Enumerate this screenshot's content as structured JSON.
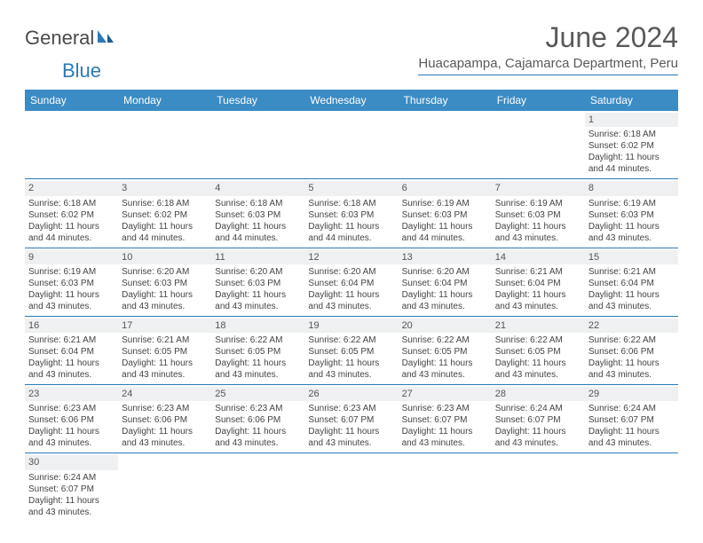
{
  "brand": {
    "part1": "General",
    "part2": "Blue"
  },
  "title": "June 2024",
  "location": "Huacapampa, Cajamarca Department, Peru",
  "colors": {
    "header_bg": "#3b8bc4",
    "header_text": "#ffffff",
    "border": "#2a7ab8",
    "daynum_bg": "#eef0f1",
    "text": "#444444",
    "title_text": "#5a5a5a"
  },
  "day_headers": [
    "Sunday",
    "Monday",
    "Tuesday",
    "Wednesday",
    "Thursday",
    "Friday",
    "Saturday"
  ],
  "labels": {
    "sunrise": "Sunrise:",
    "sunset": "Sunset:",
    "daylight": "Daylight:",
    "and": "and",
    "minutes": "minutes."
  },
  "weeks": [
    [
      null,
      null,
      null,
      null,
      null,
      null,
      {
        "n": "1",
        "sr": "6:18 AM",
        "ss": "6:02 PM",
        "dh": "11 hours",
        "dm": "44"
      }
    ],
    [
      {
        "n": "2",
        "sr": "6:18 AM",
        "ss": "6:02 PM",
        "dh": "11 hours",
        "dm": "44"
      },
      {
        "n": "3",
        "sr": "6:18 AM",
        "ss": "6:02 PM",
        "dh": "11 hours",
        "dm": "44"
      },
      {
        "n": "4",
        "sr": "6:18 AM",
        "ss": "6:03 PM",
        "dh": "11 hours",
        "dm": "44"
      },
      {
        "n": "5",
        "sr": "6:18 AM",
        "ss": "6:03 PM",
        "dh": "11 hours",
        "dm": "44"
      },
      {
        "n": "6",
        "sr": "6:19 AM",
        "ss": "6:03 PM",
        "dh": "11 hours",
        "dm": "44"
      },
      {
        "n": "7",
        "sr": "6:19 AM",
        "ss": "6:03 PM",
        "dh": "11 hours",
        "dm": "43"
      },
      {
        "n": "8",
        "sr": "6:19 AM",
        "ss": "6:03 PM",
        "dh": "11 hours",
        "dm": "43"
      }
    ],
    [
      {
        "n": "9",
        "sr": "6:19 AM",
        "ss": "6:03 PM",
        "dh": "11 hours",
        "dm": "43"
      },
      {
        "n": "10",
        "sr": "6:20 AM",
        "ss": "6:03 PM",
        "dh": "11 hours",
        "dm": "43"
      },
      {
        "n": "11",
        "sr": "6:20 AM",
        "ss": "6:03 PM",
        "dh": "11 hours",
        "dm": "43"
      },
      {
        "n": "12",
        "sr": "6:20 AM",
        "ss": "6:04 PM",
        "dh": "11 hours",
        "dm": "43"
      },
      {
        "n": "13",
        "sr": "6:20 AM",
        "ss": "6:04 PM",
        "dh": "11 hours",
        "dm": "43"
      },
      {
        "n": "14",
        "sr": "6:21 AM",
        "ss": "6:04 PM",
        "dh": "11 hours",
        "dm": "43"
      },
      {
        "n": "15",
        "sr": "6:21 AM",
        "ss": "6:04 PM",
        "dh": "11 hours",
        "dm": "43"
      }
    ],
    [
      {
        "n": "16",
        "sr": "6:21 AM",
        "ss": "6:04 PM",
        "dh": "11 hours",
        "dm": "43"
      },
      {
        "n": "17",
        "sr": "6:21 AM",
        "ss": "6:05 PM",
        "dh": "11 hours",
        "dm": "43"
      },
      {
        "n": "18",
        "sr": "6:22 AM",
        "ss": "6:05 PM",
        "dh": "11 hours",
        "dm": "43"
      },
      {
        "n": "19",
        "sr": "6:22 AM",
        "ss": "6:05 PM",
        "dh": "11 hours",
        "dm": "43"
      },
      {
        "n": "20",
        "sr": "6:22 AM",
        "ss": "6:05 PM",
        "dh": "11 hours",
        "dm": "43"
      },
      {
        "n": "21",
        "sr": "6:22 AM",
        "ss": "6:05 PM",
        "dh": "11 hours",
        "dm": "43"
      },
      {
        "n": "22",
        "sr": "6:22 AM",
        "ss": "6:06 PM",
        "dh": "11 hours",
        "dm": "43"
      }
    ],
    [
      {
        "n": "23",
        "sr": "6:23 AM",
        "ss": "6:06 PM",
        "dh": "11 hours",
        "dm": "43"
      },
      {
        "n": "24",
        "sr": "6:23 AM",
        "ss": "6:06 PM",
        "dh": "11 hours",
        "dm": "43"
      },
      {
        "n": "25",
        "sr": "6:23 AM",
        "ss": "6:06 PM",
        "dh": "11 hours",
        "dm": "43"
      },
      {
        "n": "26",
        "sr": "6:23 AM",
        "ss": "6:07 PM",
        "dh": "11 hours",
        "dm": "43"
      },
      {
        "n": "27",
        "sr": "6:23 AM",
        "ss": "6:07 PM",
        "dh": "11 hours",
        "dm": "43"
      },
      {
        "n": "28",
        "sr": "6:24 AM",
        "ss": "6:07 PM",
        "dh": "11 hours",
        "dm": "43"
      },
      {
        "n": "29",
        "sr": "6:24 AM",
        "ss": "6:07 PM",
        "dh": "11 hours",
        "dm": "43"
      }
    ],
    [
      {
        "n": "30",
        "sr": "6:24 AM",
        "ss": "6:07 PM",
        "dh": "11 hours",
        "dm": "43"
      },
      null,
      null,
      null,
      null,
      null,
      null
    ]
  ]
}
